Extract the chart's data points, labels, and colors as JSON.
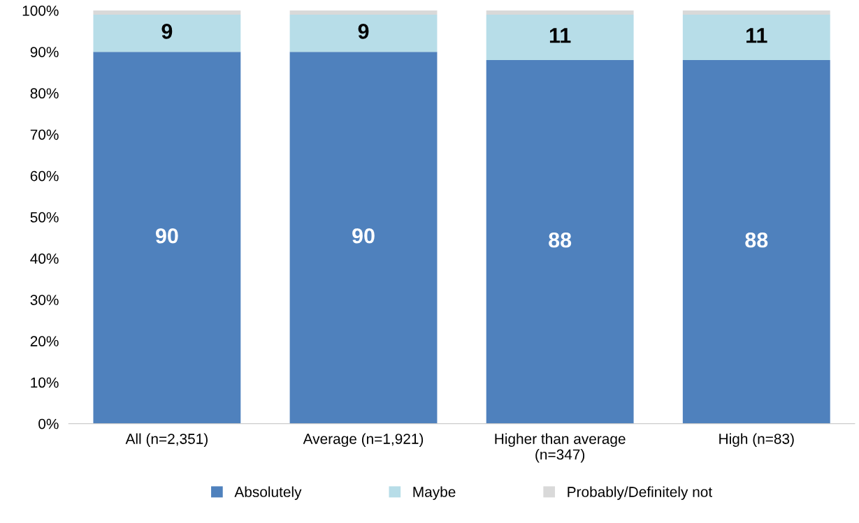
{
  "chart_data": {
    "type": "bar",
    "stacked": true,
    "categories": [
      "All (n=2,351)",
      "Average (n=1,921)",
      "Higher than average\n(n=347)",
      "High (n=83)"
    ],
    "series": [
      {
        "name": "Absolutely",
        "color": "#4f81bd",
        "values": [
          90,
          90,
          88,
          88
        ],
        "value_labels": [
          "90",
          "90",
          "88",
          "88"
        ]
      },
      {
        "name": "Maybe",
        "color": "#b7dde8",
        "values": [
          9,
          9,
          11,
          11
        ],
        "value_labels": [
          "9",
          "9",
          "11",
          "11"
        ]
      },
      {
        "name": "Probably/Definitely not",
        "color": "#d9d9d9",
        "values": [
          1,
          1,
          1,
          1
        ]
      }
    ],
    "ylim": [
      0,
      100
    ],
    "yticks": [
      {
        "value": 0,
        "label": "0%"
      },
      {
        "value": 10,
        "label": "10%"
      },
      {
        "value": 20,
        "label": "20%"
      },
      {
        "value": 30,
        "label": "30%"
      },
      {
        "value": 40,
        "label": "40%"
      },
      {
        "value": 50,
        "label": "50%"
      },
      {
        "value": 60,
        "label": "60%"
      },
      {
        "value": 70,
        "label": "70%"
      },
      {
        "value": 80,
        "label": "80%"
      },
      {
        "value": 90,
        "label": "90%"
      },
      {
        "value": 100,
        "label": "100%"
      }
    ],
    "grid": false,
    "legend": "bottom"
  }
}
